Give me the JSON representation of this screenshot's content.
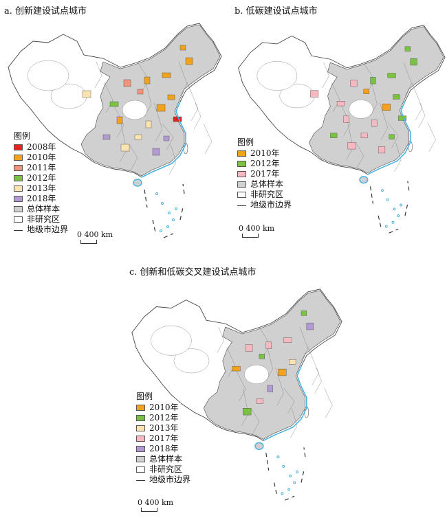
{
  "panels": [
    {
      "id": "a",
      "title": "a. 创新建设试点城市",
      "legend_title": "图例",
      "legend": [
        {
          "label": "2008年",
          "color": "#e8211b",
          "kind": "fill"
        },
        {
          "label": "2010年",
          "color": "#f2a21c",
          "kind": "fill"
        },
        {
          "label": "2011年",
          "color": "#f0957a",
          "kind": "fill"
        },
        {
          "label": "2012年",
          "color": "#7bc142",
          "kind": "fill"
        },
        {
          "label": "2013年",
          "color": "#fde3b0",
          "kind": "fill"
        },
        {
          "label": "2018年",
          "color": "#b29bd3",
          "kind": "fill"
        },
        {
          "label": "总体样本",
          "color": "#d0d0d0",
          "kind": "fill"
        },
        {
          "label": "非研究区",
          "color": "#ffffff",
          "kind": "fill"
        },
        {
          "label": "地级市边界",
          "color": "#333333",
          "kind": "line"
        }
      ],
      "scale_label": "0    400 km"
    },
    {
      "id": "b",
      "title": "b. 低碳建设试点城市",
      "legend_title": "图例",
      "legend": [
        {
          "label": "2010年",
          "color": "#f2a21c",
          "kind": "fill"
        },
        {
          "label": "2012年",
          "color": "#7bc142",
          "kind": "fill"
        },
        {
          "label": "2017年",
          "color": "#f7b9c1",
          "kind": "fill"
        },
        {
          "label": "总体样本",
          "color": "#d0d0d0",
          "kind": "fill"
        },
        {
          "label": "非研究区",
          "color": "#ffffff",
          "kind": "fill"
        },
        {
          "label": "地级市边界",
          "color": "#333333",
          "kind": "line"
        }
      ],
      "scale_label": "0    400 km"
    },
    {
      "id": "c",
      "title": "c. 创新和低碳交叉建设试点城市",
      "legend_title": "图例",
      "legend": [
        {
          "label": "2010年",
          "color": "#f2a21c",
          "kind": "fill"
        },
        {
          "label": "2012年",
          "color": "#7bc142",
          "kind": "fill"
        },
        {
          "label": "2013年",
          "color": "#fde3b0",
          "kind": "fill"
        },
        {
          "label": "2017年",
          "color": "#f7b9c1",
          "kind": "fill"
        },
        {
          "label": "2018年",
          "color": "#b29bd3",
          "kind": "fill"
        },
        {
          "label": "总体样本",
          "color": "#d0d0d0",
          "kind": "fill"
        },
        {
          "label": "非研究区",
          "color": "#ffffff",
          "kind": "fill"
        },
        {
          "label": "地级市边界",
          "color": "#333333",
          "kind": "line"
        }
      ],
      "scale_label": "0    400 km"
    }
  ],
  "colors": {
    "sample_fill": "#d0d0d0",
    "non_study_fill": "#ffffff",
    "boundary": "#444444",
    "coast": "#49b3e0"
  },
  "highlights": {
    "a": [
      "#f2a21c",
      "#f2a21c",
      "#f2a21c",
      "#f2a21c",
      "#f2a21c",
      "#f2a21c",
      "#f0957a",
      "#f0957a",
      "#7bc142",
      "#fde3b0",
      "#fde3b0",
      "#fde3b0",
      "#b29bd3",
      "#b29bd3",
      "#e8211b",
      "#f2a21c",
      "#b29bd3",
      "#fde3b0"
    ],
    "b": [
      "#7bc142",
      "#7bc142",
      "#7bc142",
      "#7bc142",
      "#7bc142",
      "#f2a21c",
      "#f2a21c",
      "#f7b9c1",
      "#f7b9c1",
      "#f7b9c1",
      "#f7b9c1",
      "#f7b9c1",
      "#7bc142",
      "#f7b9c1",
      "#7bc142",
      "#f7b9c1",
      "#7bc142",
      "#f7b9c1"
    ],
    "c": [
      "#7bc142",
      "#b29bd3",
      "#f7b9c1",
      "#f7b9c1",
      "#fde3b0",
      "#f2a21c",
      "#7bc142",
      "#f7b9c1",
      "#f2a21c",
      "#b29bd3",
      "#f7b9c1",
      "#7bc142"
    ]
  }
}
